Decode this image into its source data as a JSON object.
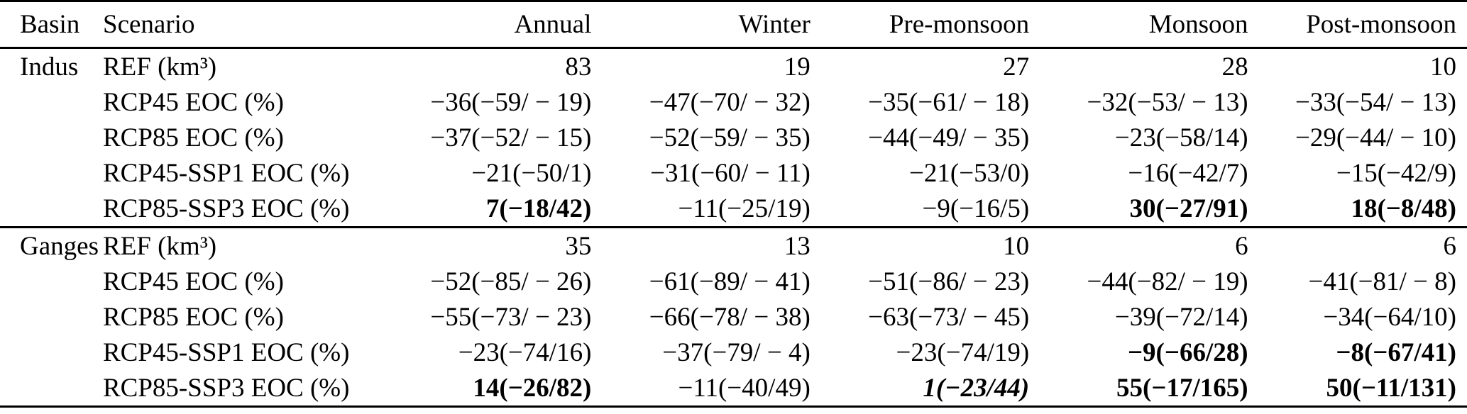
{
  "colors": {
    "text": "#000000",
    "background": "#ffffff"
  },
  "table": {
    "columns": [
      "Basin",
      "Scenario",
      "Annual",
      "Winter",
      "Pre-monsoon",
      "Monsoon",
      "Post-monsoon"
    ],
    "sections": [
      {
        "basin": "Indus",
        "rows": [
          {
            "scenario": "REF (km³)",
            "values": [
              "83",
              "19",
              "27",
              "28",
              "10"
            ]
          },
          {
            "scenario": "RCP45 EOC (%)",
            "values": [
              "−36(−59/ − 19)",
              "−47(−70/ − 32)",
              "−35(−61/ − 18)",
              "−32(−53/ − 13)",
              "−33(−54/ − 13)"
            ]
          },
          {
            "scenario": "RCP85 EOC (%)",
            "values": [
              "−37(−52/ − 15)",
              "−52(−59/ − 35)",
              "−44(−49/ − 35)",
              "−23(−58/14)",
              "−29(−44/ − 10)"
            ]
          },
          {
            "scenario": "RCP45-SSP1 EOC (%)",
            "values": [
              "−21(−50/1)",
              "−31(−60/ − 11)",
              "−21(−53/0)",
              "−16(−42/7)",
              "−15(−42/9)"
            ]
          },
          {
            "scenario": "RCP85-SSP3 EOC (%)",
            "values": [
              "7(−18/42)",
              "−11(−25/19)",
              "−9(−16/5)",
              "30(−27/91)",
              "18(−8/48)"
            ]
          }
        ]
      },
      {
        "basin": "Ganges",
        "rows": [
          {
            "scenario": "REF (km³)",
            "values": [
              "35",
              "13",
              "10",
              "6",
              "6"
            ]
          },
          {
            "scenario": "RCP45 EOC (%)",
            "values": [
              "−52(−85/ − 26)",
              "−61(−89/ − 41)",
              "−51(−86/ − 23)",
              "−44(−82/ − 19)",
              "−41(−81/ − 8)"
            ]
          },
          {
            "scenario": "RCP85 EOC (%)",
            "values": [
              "−55(−73/ − 23)",
              "−66(−78/ − 38)",
              "−63(−73/ − 45)",
              "−39(−72/14)",
              "−34(−64/10)"
            ]
          },
          {
            "scenario": "RCP45-SSP1 EOC (%)",
            "values": [
              "−23(−74/16)",
              "−37(−79/ − 4)",
              "−23(−74/19)",
              "−9(−66/28)",
              "−8(−67/41)"
            ]
          },
          {
            "scenario": "RCP85-SSP3 EOC (%)",
            "values": [
              "14(−26/82)",
              "−11(−40/49)",
              "1(−23/44)",
              "55(−17/165)",
              "50(−11/131)"
            ]
          }
        ]
      }
    ]
  }
}
